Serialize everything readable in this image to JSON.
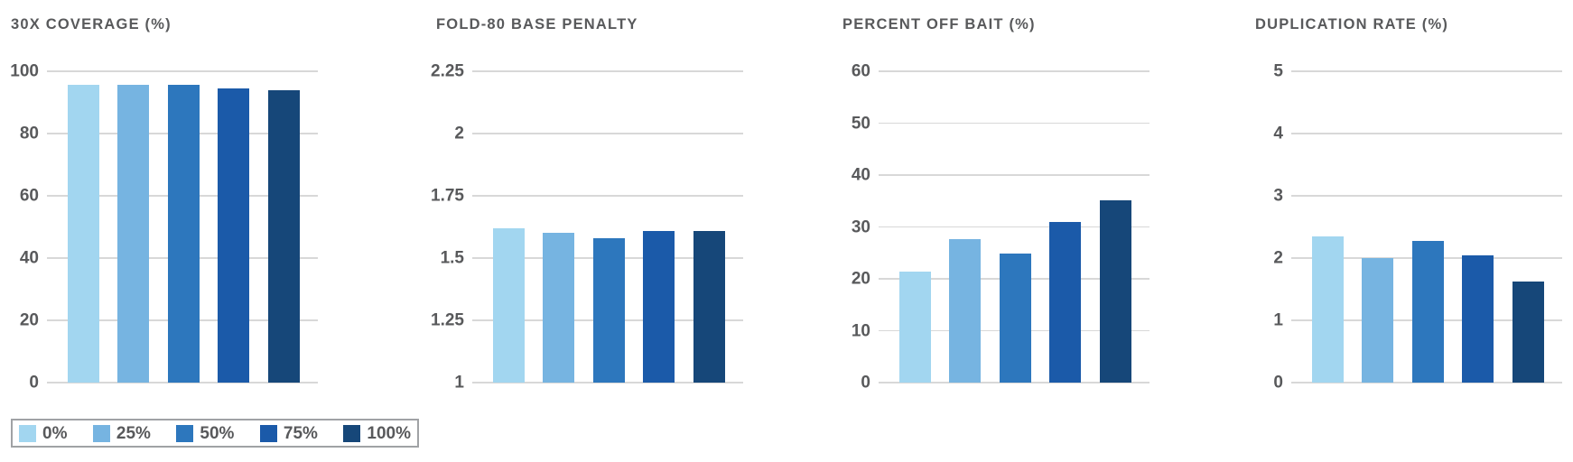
{
  "palette": {
    "bar_colors": [
      "#A2D6F0",
      "#76B4E1",
      "#2D77BD",
      "#1B5AA9",
      "#164779"
    ],
    "grid_color": "#D8D8D8",
    "text_color": "#58595B",
    "legend_border": "#A0A2A5"
  },
  "legend": {
    "items": [
      {
        "label": "0%",
        "color": "#A2D6F0"
      },
      {
        "label": "25%",
        "color": "#76B4E1"
      },
      {
        "label": "50%",
        "color": "#2D77BD"
      },
      {
        "label": "75%",
        "color": "#1B5AA9"
      },
      {
        "label": "100%",
        "color": "#164779"
      }
    ]
  },
  "chart_data": [
    {
      "type": "bar",
      "title": "30X COVERAGE (%)",
      "categories": [
        "0%",
        "25%",
        "50%",
        "75%",
        "100%"
      ],
      "values": [
        95.7,
        95.7,
        95.7,
        94.6,
        94.0
      ],
      "ylim": [
        0,
        100
      ],
      "ytick_labels": [
        "0",
        "20",
        "40",
        "60",
        "80",
        "100"
      ],
      "grid": true,
      "legend_position": "bottom-left-shared"
    },
    {
      "type": "bar",
      "title": "FOLD-80 BASE PENALTY",
      "categories": [
        "0%",
        "25%",
        "50%",
        "75%",
        "100%"
      ],
      "values": [
        1.62,
        1.6,
        1.58,
        1.61,
        1.61
      ],
      "ylim": [
        1,
        2.25
      ],
      "ytick_labels": [
        "1",
        "1.25",
        "1.5",
        "1.75",
        "2",
        "2.25"
      ],
      "grid": true,
      "legend_position": "bottom-left-shared"
    },
    {
      "type": "bar",
      "title": "PERCENT OFF BAIT (%)",
      "categories": [
        "0%",
        "25%",
        "50%",
        "75%",
        "100%"
      ],
      "values": [
        21.4,
        27.7,
        24.9,
        30.9,
        35.1
      ],
      "ylim": [
        0,
        60
      ],
      "ytick_labels": [
        "0",
        "10",
        "20",
        "30",
        "40",
        "50",
        "60"
      ],
      "grid": true,
      "legend_position": "bottom-left-shared"
    },
    {
      "type": "bar",
      "title": "DUPLICATION RATE (%)",
      "categories": [
        "0%",
        "25%",
        "50%",
        "75%",
        "100%"
      ],
      "values": [
        2.35,
        2.0,
        2.28,
        2.05,
        1.63
      ],
      "ylim": [
        0,
        5
      ],
      "ytick_labels": [
        "0",
        "1",
        "2",
        "3",
        "4",
        "5"
      ],
      "grid": true,
      "legend_position": "bottom-left-shared"
    }
  ]
}
